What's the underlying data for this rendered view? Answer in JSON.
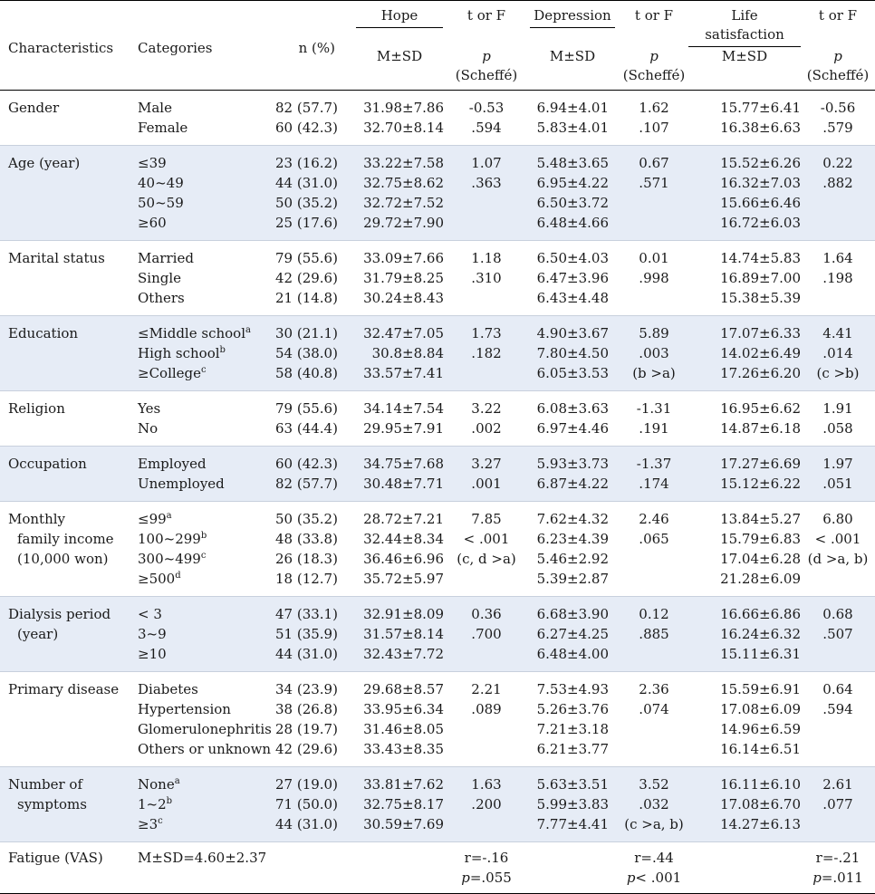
{
  "header": {
    "characteristics": "Characteristics",
    "categories": "Categories",
    "n_pct": "n (%)",
    "hope": "Hope",
    "depression": "Depression",
    "life_satisfaction": "Life satisfaction",
    "t_or_f": "t or F",
    "p": "p",
    "scheffe": "(Scheffé)",
    "m_sd": "M±SD"
  },
  "rows": [
    {
      "char": [
        "Gender"
      ],
      "cats": [
        "Male",
        "Female"
      ],
      "sup": [
        "",
        ""
      ],
      "n": [
        "82 (57.7)",
        "60 (42.3)"
      ],
      "hope": [
        "31.98±7.86",
        "32.70±8.14"
      ],
      "hope_t": [
        "-0.53",
        ".594"
      ],
      "dep": [
        "6.94±4.01",
        "5.83±4.01"
      ],
      "dep_t": [
        "1.62",
        ".107"
      ],
      "life": [
        "15.77±6.41",
        "16.38±6.63"
      ],
      "life_t": [
        "-0.56",
        ".579"
      ]
    },
    {
      "char": [
        "Age (year)"
      ],
      "cats": [
        "≤39",
        "40~49",
        "50~59",
        "≥60"
      ],
      "sup": [
        "",
        "",
        "",
        ""
      ],
      "n": [
        "23 (16.2)",
        "44 (31.0)",
        "50 (35.2)",
        "25 (17.6)"
      ],
      "hope": [
        "33.22±7.58",
        "32.75±8.62",
        "32.72±7.52",
        "29.72±7.90"
      ],
      "hope_t": [
        "1.07",
        ".363"
      ],
      "dep": [
        "5.48±3.65",
        "6.95±4.22",
        "6.50±3.72",
        "6.48±4.66"
      ],
      "dep_t": [
        "0.67",
        ".571"
      ],
      "life": [
        "15.52±6.26",
        "16.32±7.03",
        "15.66±6.46",
        "16.72±6.03"
      ],
      "life_t": [
        "0.22",
        ".882"
      ]
    },
    {
      "char": [
        "Marital status"
      ],
      "cats": [
        "Married",
        "Single",
        "Others"
      ],
      "sup": [
        "",
        "",
        ""
      ],
      "n": [
        "79 (55.6)",
        "42 (29.6)",
        "21 (14.8)"
      ],
      "hope": [
        "33.09±7.66",
        "31.79±8.25",
        "30.24±8.43"
      ],
      "hope_t": [
        "1.18",
        ".310"
      ],
      "dep": [
        "6.50±4.03",
        "6.47±3.96",
        "6.43±4.48"
      ],
      "dep_t": [
        "0.01",
        ".998"
      ],
      "life": [
        "14.74±5.83",
        "16.89±7.00",
        "15.38±5.39"
      ],
      "life_t": [
        "1.64",
        ".198"
      ]
    },
    {
      "char": [
        "Education"
      ],
      "cats": [
        "≤Middle school",
        "High school",
        "≥College"
      ],
      "sup": [
        "a",
        "b",
        "c"
      ],
      "n": [
        "30 (21.1)",
        "54 (38.0)",
        "58 (40.8)"
      ],
      "hope": [
        "32.47±7.05",
        "30.8±8.84",
        "33.57±7.41"
      ],
      "hope_t": [
        "1.73",
        ".182"
      ],
      "dep": [
        "4.90±3.67",
        "7.80±4.50",
        "6.05±3.53"
      ],
      "dep_t": [
        "5.89",
        ".003",
        "(b >a)"
      ],
      "life": [
        "17.07±6.33",
        "14.02±6.49",
        "17.26±6.20"
      ],
      "life_t": [
        "4.41",
        ".014",
        "(c >b)"
      ]
    },
    {
      "char": [
        "Religion"
      ],
      "cats": [
        "Yes",
        "No"
      ],
      "sup": [
        "",
        ""
      ],
      "n": [
        "79 (55.6)",
        "63 (44.4)"
      ],
      "hope": [
        "34.14±7.54",
        "29.95±7.91"
      ],
      "hope_t": [
        "3.22",
        ".002"
      ],
      "dep": [
        "6.08±3.63",
        "6.97±4.46"
      ],
      "dep_t": [
        "-1.31",
        ".191"
      ],
      "life": [
        "16.95±6.62",
        "14.87±6.18"
      ],
      "life_t": [
        "1.91",
        ".058"
      ]
    },
    {
      "char": [
        "Occupation"
      ],
      "cats": [
        "Employed",
        "Unemployed"
      ],
      "sup": [
        "",
        ""
      ],
      "n": [
        "60 (42.3)",
        "82 (57.7)"
      ],
      "hope": [
        "34.75±7.68",
        "30.48±7.71"
      ],
      "hope_t": [
        "3.27",
        ".001"
      ],
      "dep": [
        "5.93±3.73",
        "6.87±4.22"
      ],
      "dep_t": [
        "-1.37",
        ".174"
      ],
      "life": [
        "17.27±6.69",
        "15.12±6.22"
      ],
      "life_t": [
        "1.97",
        ".051"
      ]
    },
    {
      "char": [
        "Monthly",
        "family income",
        "(10,000 won)"
      ],
      "cats": [
        "≤99",
        "100~299",
        "300~499",
        "≥500"
      ],
      "sup": [
        "a",
        "b",
        "c",
        "d"
      ],
      "n": [
        "50 (35.2)",
        "48 (33.8)",
        "26 (18.3)",
        "18 (12.7)"
      ],
      "hope": [
        "28.72±7.21",
        "32.44±8.34",
        "36.46±6.96",
        "35.72±5.97"
      ],
      "hope_t": [
        "7.85",
        "< .001",
        "(c, d >a)"
      ],
      "dep": [
        "7.62±4.32",
        "6.23±4.39",
        "5.46±2.92",
        "5.39±2.87"
      ],
      "dep_t": [
        "2.46",
        ".065"
      ],
      "life": [
        "13.84±5.27",
        "15.79±6.83",
        "17.04±6.28",
        "21.28±6.09"
      ],
      "life_t": [
        "6.80",
        "< .001",
        "(d >a,  b)"
      ]
    },
    {
      "char": [
        "Dialysis period",
        "(year)"
      ],
      "cats": [
        "< 3",
        "3~9",
        "≥10"
      ],
      "sup": [
        "",
        "",
        ""
      ],
      "n": [
        "47 (33.1)",
        "51 (35.9)",
        "44 (31.0)"
      ],
      "hope": [
        "32.91±8.09",
        "31.57±8.14",
        "32.43±7.72"
      ],
      "hope_t": [
        "0.36",
        ".700"
      ],
      "dep": [
        "6.68±3.90",
        "6.27±4.25",
        "6.48±4.00"
      ],
      "dep_t": [
        "0.12",
        ".885"
      ],
      "life": [
        "16.66±6.86",
        "16.24±6.32",
        "15.11±6.31"
      ],
      "life_t": [
        "0.68",
        ".507"
      ]
    },
    {
      "char": [
        "Primary disease"
      ],
      "cats": [
        "Diabetes",
        "Hypertension",
        "Glomerulonephritis",
        "Others or unknown"
      ],
      "sup": [
        "",
        "",
        "",
        ""
      ],
      "n": [
        "34 (23.9)",
        "38 (26.8)",
        "28 (19.7)",
        "42 (29.6)"
      ],
      "hope": [
        "29.68±8.57",
        "33.95±6.34",
        "31.46±8.05",
        "33.43±8.35"
      ],
      "hope_t": [
        "2.21",
        ".089"
      ],
      "dep": [
        "7.53±4.93",
        "5.26±3.76",
        "7.21±3.18",
        "6.21±3.77"
      ],
      "dep_t": [
        "2.36",
        ".074"
      ],
      "life": [
        "15.59±6.91",
        "17.08±6.09",
        "14.96±6.59",
        "16.14±6.51"
      ],
      "life_t": [
        "0.64",
        ".594"
      ]
    },
    {
      "char": [
        "Number of",
        "symptoms"
      ],
      "cats": [
        "None",
        "1~2",
        "≥3"
      ],
      "sup": [
        "a",
        "b",
        "c"
      ],
      "n": [
        "27 (19.0)",
        "71 (50.0)",
        "44 (31.0)"
      ],
      "hope": [
        "33.81±7.62",
        "32.75±8.17",
        "30.59±7.69"
      ],
      "hope_t": [
        "1.63",
        ".200"
      ],
      "dep": [
        "5.63±3.51",
        "5.99±3.83",
        "7.77±4.41"
      ],
      "dep_t": [
        "3.52",
        ".032",
        "(c >a,  b)"
      ],
      "life": [
        "16.11±6.10",
        "17.08±6.70",
        "14.27±6.13"
      ],
      "life_t": [
        "2.61",
        ".077"
      ]
    }
  ],
  "fatigue": {
    "char": "Fatigue (VAS)",
    "msd": "M±SD=4.60±2.37",
    "hope_r": "r=-.16",
    "hope_p": "=.055",
    "dep_r": "r=.44",
    "dep_p": "< .001",
    "life_r": "r=-.21",
    "life_p": "=.011"
  }
}
